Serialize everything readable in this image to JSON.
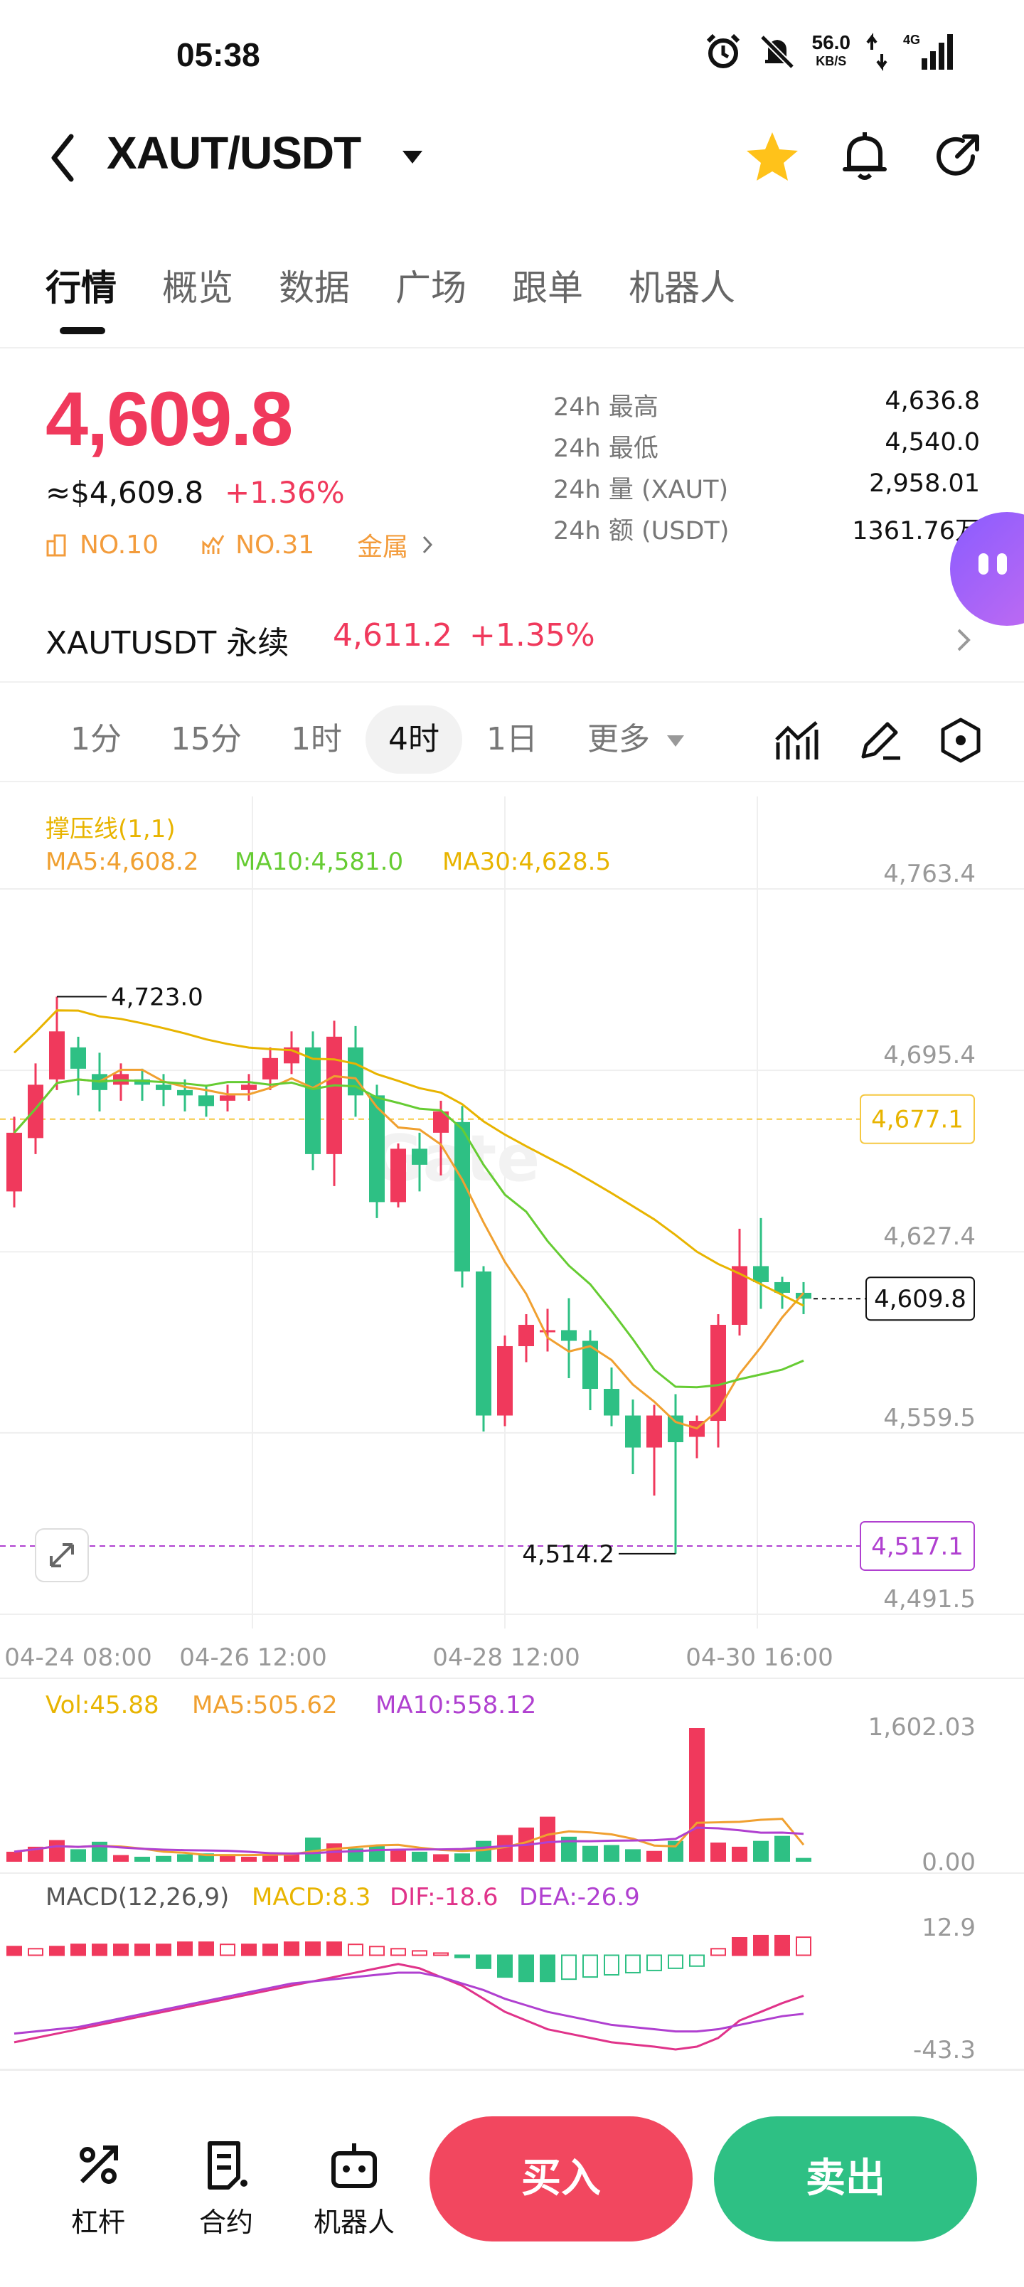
{
  "status_bar": {
    "time": "05:38",
    "speed_value": "56.0",
    "speed_unit": "KB/S",
    "network": "4G"
  },
  "header": {
    "pair": "XAUT/USDT"
  },
  "tabs": [
    "行情",
    "概览",
    "数据",
    "广场",
    "跟单",
    "机器人"
  ],
  "price": {
    "last": "4,609.8",
    "usd": "≈$4,609.8",
    "change": "+1.36%",
    "rank1": "NO.10",
    "rank2": "NO.31",
    "category": "金属"
  },
  "stats": [
    {
      "label": "24h  最高",
      "value": "4,636.8"
    },
    {
      "label": "24h  最低",
      "value": "4,540.0"
    },
    {
      "label": "24h  量 (XAUT)",
      "value": "2,958.01"
    },
    {
      "label": "24h  额 (USDT)",
      "value": "1361.76万"
    }
  ],
  "perpetual": {
    "name": "XAUTUSDT 永续",
    "price": "4,611.2",
    "change": "+1.35%"
  },
  "intervals": [
    "1分",
    "15分",
    "1时",
    "4时",
    "1日",
    "更多"
  ],
  "indicators": {
    "support": "撑压线(1,1)",
    "ma5": "MA5:4,608.2",
    "ma10": "MA10:4,581.0",
    "ma30": "MA30:4,628.5",
    "vol": "Vol:45.88",
    "vol_ma5": "MA5:505.62",
    "vol_ma10": "MA10:558.12",
    "macd_title": "MACD(12,26,9)",
    "macd": "MACD:8.3",
    "dif": "DIF:-18.6",
    "dea": "DEA:-26.9"
  },
  "colors": {
    "up": "#f0395c",
    "down": "#2ec084",
    "ma5": "#f0a030",
    "ma10": "#66cc33",
    "ma30": "#e8b400",
    "vol_ma10": "#b040d0"
  },
  "chart_data": {
    "type": "candlestick",
    "y_ticks": [
      "4,763.4",
      "4,695.4",
      "4,627.4",
      "4,559.5",
      "4,491.5"
    ],
    "ylim": [
      4491.5,
      4763.4
    ],
    "x_ticks": [
      "04-24 08:00",
      "04-26 12:00",
      "04-28 12:00",
      "04-30 16:00"
    ],
    "current_price_label": "4,609.8",
    "resistance_label": "4,677.1",
    "support_label": "4,517.1",
    "high_label": "4,723.0",
    "low_label": "4,514.2",
    "vol_ticks": [
      "1,602.03",
      "0.00"
    ],
    "macd_ticks": [
      "12.9",
      "-43.3"
    ],
    "candles": [
      [
        4650,
        4672,
        4644,
        4678
      ],
      [
        4670,
        4690,
        4664,
        4698
      ],
      [
        4692,
        4710,
        4688,
        4723
      ],
      [
        4704,
        4696,
        4686,
        4708
      ],
      [
        4694,
        4688,
        4680,
        4702
      ],
      [
        4690,
        4694,
        4684,
        4698
      ],
      [
        4692,
        4690,
        4684,
        4696
      ],
      [
        4690,
        4688,
        4682,
        4694
      ],
      [
        4688,
        4686,
        4680,
        4692
      ],
      [
        4686,
        4682,
        4678,
        4690
      ],
      [
        4684,
        4686,
        4680,
        4690
      ],
      [
        4688,
        4690,
        4684,
        4694
      ],
      [
        4692,
        4700,
        4688,
        4704
      ],
      [
        4698,
        4704,
        4694,
        4710
      ],
      [
        4704,
        4664,
        4658,
        4710
      ],
      [
        4664,
        4708,
        4652,
        4714
      ],
      [
        4704,
        4686,
        4678,
        4712
      ],
      [
        4686,
        4646,
        4640,
        4690
      ],
      [
        4646,
        4666,
        4644,
        4668
      ],
      [
        4666,
        4660,
        4650,
        4672
      ],
      [
        4672,
        4680,
        4656,
        4684
      ],
      [
        4676,
        4620,
        4614,
        4682
      ],
      [
        4620,
        4566,
        4560,
        4622
      ],
      [
        4566,
        4592,
        4562,
        4596
      ],
      [
        4592,
        4600,
        4586,
        4604
      ],
      [
        4598,
        4598,
        4590,
        4606
      ],
      [
        4598,
        4594,
        4580,
        4610
      ],
      [
        4594,
        4576,
        4568,
        4598
      ],
      [
        4576,
        4566,
        4562,
        4584
      ],
      [
        4566,
        4554,
        4544,
        4572
      ],
      [
        4554,
        4566,
        4536,
        4570
      ],
      [
        4566,
        4556,
        4514.2,
        4574
      ],
      [
        4558,
        4564,
        4550,
        4566
      ],
      [
        4564,
        4600,
        4554,
        4604
      ],
      [
        4600,
        4622,
        4596,
        4636
      ],
      [
        4622,
        4616,
        4606,
        4640
      ],
      [
        4616,
        4612,
        4606,
        4618
      ],
      [
        4612,
        4609.8,
        4604,
        4616
      ]
    ],
    "volume": [
      120,
      180,
      260,
      150,
      240,
      80,
      60,
      70,
      90,
      100,
      80,
      60,
      90,
      110,
      290,
      220,
      160,
      200,
      140,
      120,
      90,
      100,
      250,
      320,
      410,
      540,
      300,
      190,
      200,
      150,
      130,
      250,
      1602.03,
      230,
      180,
      250,
      310,
      45.88
    ],
    "macd": [
      4,
      3,
      4,
      5,
      5,
      5,
      5,
      5,
      6,
      6,
      5,
      5,
      5,
      6,
      6,
      6,
      5,
      4,
      3,
      2,
      1,
      -1,
      -6,
      -10,
      -12,
      -12,
      -11,
      -10,
      -9,
      -8,
      -7,
      -6,
      -5,
      3,
      8,
      9,
      9,
      8.3
    ],
    "dif": [
      -40,
      -38,
      -36,
      -34,
      -32,
      -30,
      -28,
      -26,
      -24,
      -22,
      -20,
      -18,
      -16,
      -14,
      -12,
      -10,
      -8,
      -6,
      -4,
      -6,
      -10,
      -14,
      -20,
      -26,
      -30,
      -34,
      -36,
      -38,
      -40,
      -41,
      -42,
      -43.3,
      -42,
      -38,
      -30,
      -26,
      -22,
      -18.6
    ],
    "dea": [
      -36,
      -35,
      -34,
      -33,
      -31,
      -29,
      -27,
      -25,
      -23,
      -21,
      -19,
      -17,
      -15,
      -13,
      -12,
      -11,
      -10,
      -9,
      -8,
      -8,
      -10,
      -13,
      -16,
      -20,
      -23,
      -26,
      -28,
      -30,
      -32,
      -33,
      -34,
      -35,
      -35,
      -34,
      -32,
      -30,
      -28,
      -26.9
    ]
  },
  "bottom_nav": {
    "leverage": "杠杆",
    "contract": "合约",
    "robot": "机器人",
    "buy": "买入",
    "sell": "卖出"
  }
}
